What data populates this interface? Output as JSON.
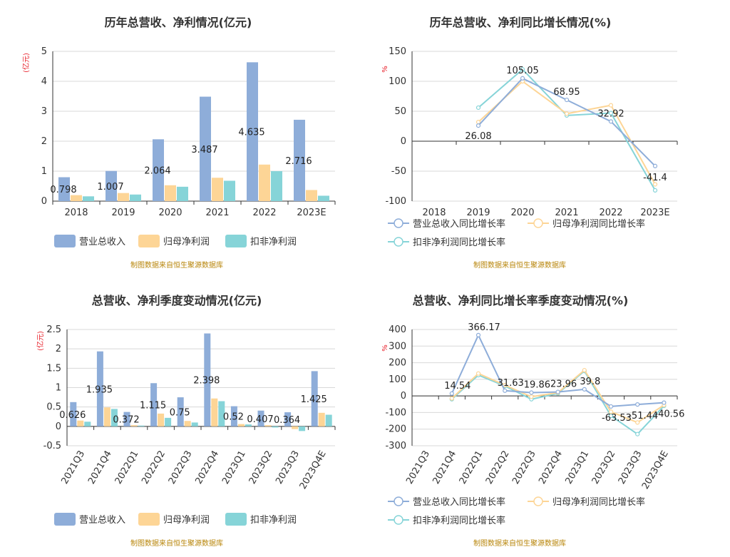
{
  "source_text": "制图数据来自恒生聚源数据库",
  "colors": {
    "revenue": "#8eadd9",
    "net_profit": "#fdd596",
    "deducted_profit": "#86d4d8",
    "grid": "#d8d8d8",
    "axis": "#333333",
    "unit": "#e8202a",
    "source": "#b8860b"
  },
  "chart_data": [
    {
      "type": "bar",
      "title": "历年总营收、净利情况(亿元)",
      "ylabel": "(亿元)",
      "categories": [
        "2018",
        "2019",
        "2020",
        "2021",
        "2022",
        "2023E"
      ],
      "ylim": [
        0,
        5
      ],
      "yticks": [
        0,
        1,
        2,
        3,
        4,
        5
      ],
      "grid": true,
      "legend": "bottom",
      "series": [
        {
          "name": "营业总收入",
          "values": [
            0.798,
            1.007,
            2.064,
            3.487,
            4.635,
            2.716
          ],
          "labels": [
            "0.798",
            "1.007",
            "2.064",
            "3.487",
            "4.635",
            "2.716"
          ]
        },
        {
          "name": "归母净利润",
          "values": [
            0.2,
            0.27,
            0.53,
            0.78,
            1.22,
            0.37
          ]
        },
        {
          "name": "扣非净利润",
          "values": [
            0.16,
            0.22,
            0.48,
            0.68,
            1.0,
            0.18
          ]
        }
      ]
    },
    {
      "type": "line",
      "title": "历年总营收、净利同比增长情况(%)",
      "ylabel": "%",
      "categories": [
        "2018",
        "2019",
        "2020",
        "2021",
        "2022",
        "2023E"
      ],
      "ylim": [
        -100,
        150
      ],
      "yticks": [
        -100,
        -50,
        0,
        50,
        100,
        150
      ],
      "grid": true,
      "legend": "bottom",
      "series": [
        {
          "name": "营业总收入同比增长率",
          "values": [
            null,
            26.08,
            105.05,
            68.95,
            32.92,
            -41.4
          ],
          "labels": [
            null,
            "26.08",
            "105.05",
            "68.95",
            "32.92",
            "-41.4"
          ]
        },
        {
          "name": "归母净利润同比增长率",
          "values": [
            null,
            32,
            100,
            46,
            60,
            -72
          ]
        },
        {
          "name": "扣非净利润同比增长率",
          "values": [
            null,
            56,
            120,
            43,
            47,
            -82
          ]
        }
      ]
    },
    {
      "type": "bar",
      "title": "总营收、净利季度变动情况(亿元)",
      "ylabel": "(亿元)",
      "categories": [
        "2021Q3",
        "2021Q4",
        "2022Q1",
        "2022Q2",
        "2022Q3",
        "2022Q4",
        "2023Q1",
        "2023Q2",
        "2023Q3",
        "2023Q4E"
      ],
      "ylim": [
        -0.5,
        2.5
      ],
      "yticks": [
        -0.5,
        0,
        0.5,
        1,
        1.5,
        2,
        2.5
      ],
      "grid": true,
      "legend": "bottom",
      "series": [
        {
          "name": "营业总收入",
          "values": [
            0.626,
            1.935,
            0.372,
            1.115,
            0.75,
            2.398,
            0.52,
            0.407,
            0.364,
            1.425
          ],
          "labels": [
            "0.626",
            "1.935",
            "0.372",
            "1.115",
            "0.75",
            "2.398",
            "0.52",
            "0.407",
            "0.364",
            "1.425"
          ]
        },
        {
          "name": "归母净利润",
          "values": [
            0.15,
            0.49,
            0.03,
            0.33,
            0.14,
            0.72,
            0.06,
            0.03,
            -0.07,
            0.35
          ]
        },
        {
          "name": "扣非净利润",
          "values": [
            0.12,
            0.45,
            0.02,
            0.22,
            0.1,
            0.65,
            0.05,
            -0.03,
            -0.12,
            0.3
          ]
        }
      ]
    },
    {
      "type": "line",
      "title": "总营收、净利同比增长率季度变动情况(%)",
      "ylabel": "%",
      "categories": [
        "2021Q3",
        "2021Q4",
        "2022Q1",
        "2022Q2",
        "2022Q3",
        "2022Q4",
        "2023Q1",
        "2023Q2",
        "2023Q3",
        "2023Q4E"
      ],
      "ylim": [
        -300,
        400
      ],
      "yticks": [
        -300,
        -200,
        -100,
        0,
        100,
        200,
        300,
        400
      ],
      "grid": true,
      "legend": "bottom",
      "series": [
        {
          "name": "营业总收入同比增长率",
          "values": [
            null,
            14.54,
            366.17,
            31.63,
            19.86,
            23.96,
            39.8,
            -63.53,
            -51.44,
            -40.56
          ],
          "labels": [
            null,
            "14.54",
            "366.17",
            "31.63",
            "19.86",
            "23.96",
            "39.8",
            "-63.53",
            "-51.44",
            "-40.56"
          ]
        },
        {
          "name": "归母净利润同比增长率",
          "values": [
            null,
            -15,
            135,
            65,
            -5,
            20,
            155,
            -95,
            -160,
            -55
          ]
        },
        {
          "name": "扣非净利润同比增长率",
          "values": [
            null,
            -20,
            125,
            60,
            -20,
            15,
            150,
            -120,
            -230,
            -60
          ]
        }
      ]
    }
  ]
}
